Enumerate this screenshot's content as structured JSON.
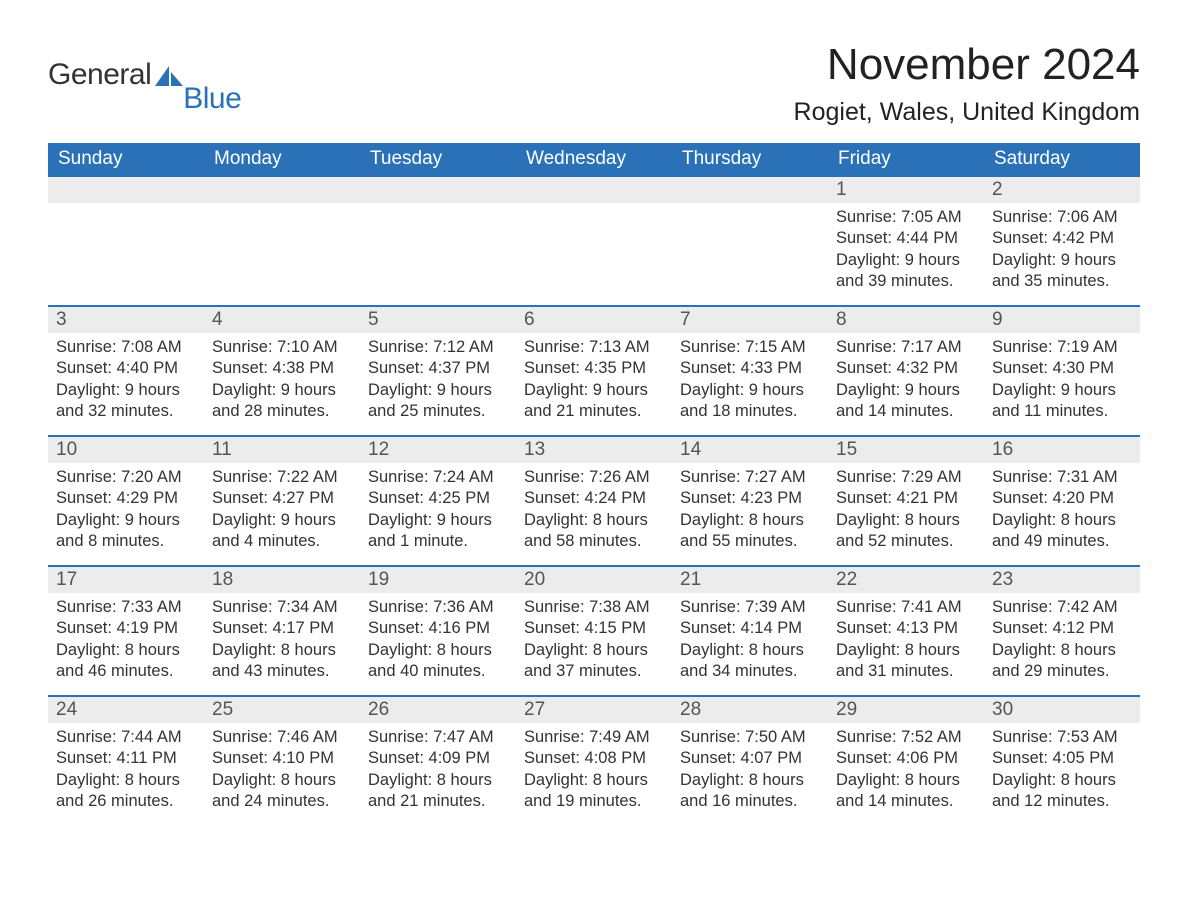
{
  "logo": {
    "text1": "General",
    "text2": "Blue",
    "sail_color": "#2a71b8"
  },
  "title": "November 2024",
  "location": "Rogiet, Wales, United Kingdom",
  "colors": {
    "header_bg": "#2a71b8",
    "header_text": "#ffffff",
    "row_border": "#2a71b8",
    "daynum_bg": "#ececec",
    "text": "#333333",
    "page_bg": "#ffffff"
  },
  "fonts": {
    "title_size_pt": 33,
    "location_size_pt": 19,
    "header_size_pt": 14,
    "body_size_pt": 12
  },
  "weekdays": [
    "Sunday",
    "Monday",
    "Tuesday",
    "Wednesday",
    "Thursday",
    "Friday",
    "Saturday"
  ],
  "weeks": [
    [
      {
        "blank": true
      },
      {
        "blank": true
      },
      {
        "blank": true
      },
      {
        "blank": true
      },
      {
        "blank": true
      },
      {
        "day": 1,
        "sunrise": "7:05 AM",
        "sunset": "4:44 PM",
        "daylight": "9 hours and 39 minutes."
      },
      {
        "day": 2,
        "sunrise": "7:06 AM",
        "sunset": "4:42 PM",
        "daylight": "9 hours and 35 minutes."
      }
    ],
    [
      {
        "day": 3,
        "sunrise": "7:08 AM",
        "sunset": "4:40 PM",
        "daylight": "9 hours and 32 minutes."
      },
      {
        "day": 4,
        "sunrise": "7:10 AM",
        "sunset": "4:38 PM",
        "daylight": "9 hours and 28 minutes."
      },
      {
        "day": 5,
        "sunrise": "7:12 AM",
        "sunset": "4:37 PM",
        "daylight": "9 hours and 25 minutes."
      },
      {
        "day": 6,
        "sunrise": "7:13 AM",
        "sunset": "4:35 PM",
        "daylight": "9 hours and 21 minutes."
      },
      {
        "day": 7,
        "sunrise": "7:15 AM",
        "sunset": "4:33 PM",
        "daylight": "9 hours and 18 minutes."
      },
      {
        "day": 8,
        "sunrise": "7:17 AM",
        "sunset": "4:32 PM",
        "daylight": "9 hours and 14 minutes."
      },
      {
        "day": 9,
        "sunrise": "7:19 AM",
        "sunset": "4:30 PM",
        "daylight": "9 hours and 11 minutes."
      }
    ],
    [
      {
        "day": 10,
        "sunrise": "7:20 AM",
        "sunset": "4:29 PM",
        "daylight": "9 hours and 8 minutes."
      },
      {
        "day": 11,
        "sunrise": "7:22 AM",
        "sunset": "4:27 PM",
        "daylight": "9 hours and 4 minutes."
      },
      {
        "day": 12,
        "sunrise": "7:24 AM",
        "sunset": "4:25 PM",
        "daylight": "9 hours and 1 minute."
      },
      {
        "day": 13,
        "sunrise": "7:26 AM",
        "sunset": "4:24 PM",
        "daylight": "8 hours and 58 minutes."
      },
      {
        "day": 14,
        "sunrise": "7:27 AM",
        "sunset": "4:23 PM",
        "daylight": "8 hours and 55 minutes."
      },
      {
        "day": 15,
        "sunrise": "7:29 AM",
        "sunset": "4:21 PM",
        "daylight": "8 hours and 52 minutes."
      },
      {
        "day": 16,
        "sunrise": "7:31 AM",
        "sunset": "4:20 PM",
        "daylight": "8 hours and 49 minutes."
      }
    ],
    [
      {
        "day": 17,
        "sunrise": "7:33 AM",
        "sunset": "4:19 PM",
        "daylight": "8 hours and 46 minutes."
      },
      {
        "day": 18,
        "sunrise": "7:34 AM",
        "sunset": "4:17 PM",
        "daylight": "8 hours and 43 minutes."
      },
      {
        "day": 19,
        "sunrise": "7:36 AM",
        "sunset": "4:16 PM",
        "daylight": "8 hours and 40 minutes."
      },
      {
        "day": 20,
        "sunrise": "7:38 AM",
        "sunset": "4:15 PM",
        "daylight": "8 hours and 37 minutes."
      },
      {
        "day": 21,
        "sunrise": "7:39 AM",
        "sunset": "4:14 PM",
        "daylight": "8 hours and 34 minutes."
      },
      {
        "day": 22,
        "sunrise": "7:41 AM",
        "sunset": "4:13 PM",
        "daylight": "8 hours and 31 minutes."
      },
      {
        "day": 23,
        "sunrise": "7:42 AM",
        "sunset": "4:12 PM",
        "daylight": "8 hours and 29 minutes."
      }
    ],
    [
      {
        "day": 24,
        "sunrise": "7:44 AM",
        "sunset": "4:11 PM",
        "daylight": "8 hours and 26 minutes."
      },
      {
        "day": 25,
        "sunrise": "7:46 AM",
        "sunset": "4:10 PM",
        "daylight": "8 hours and 24 minutes."
      },
      {
        "day": 26,
        "sunrise": "7:47 AM",
        "sunset": "4:09 PM",
        "daylight": "8 hours and 21 minutes."
      },
      {
        "day": 27,
        "sunrise": "7:49 AM",
        "sunset": "4:08 PM",
        "daylight": "8 hours and 19 minutes."
      },
      {
        "day": 28,
        "sunrise": "7:50 AM",
        "sunset": "4:07 PM",
        "daylight": "8 hours and 16 minutes."
      },
      {
        "day": 29,
        "sunrise": "7:52 AM",
        "sunset": "4:06 PM",
        "daylight": "8 hours and 14 minutes."
      },
      {
        "day": 30,
        "sunrise": "7:53 AM",
        "sunset": "4:05 PM",
        "daylight": "8 hours and 12 minutes."
      }
    ]
  ],
  "labels": {
    "sunrise": "Sunrise: ",
    "sunset": "Sunset: ",
    "daylight": "Daylight: "
  }
}
